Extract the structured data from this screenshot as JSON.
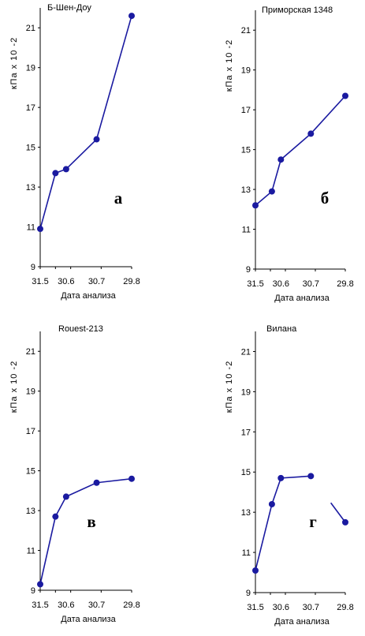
{
  "chart_data": [
    {
      "type": "line",
      "title": "Б-Шен-Доу",
      "panel_label": "а",
      "xlabel": "Дата анализа",
      "ylabel": "кПа х 10 -2",
      "categories": [
        "31.5",
        "",
        "30.6",
        "30.7",
        "29.8"
      ],
      "x": [
        0,
        0.5,
        0.85,
        1.85,
        3
      ],
      "values": [
        10.9,
        13.7,
        13.9,
        15.4,
        21.6
      ],
      "ylim": [
        9,
        22
      ],
      "yticks": [
        9,
        11,
        13,
        15,
        17,
        19,
        21
      ],
      "line_color": "#1a1aa0"
    },
    {
      "type": "line",
      "title": "Приморская 1348",
      "panel_label": "б",
      "xlabel": "Дата анализа",
      "ylabel": "кПа х 10 -2",
      "categories": [
        "31.5",
        "",
        "30.6",
        "30.7",
        "29.8"
      ],
      "x": [
        0,
        0.55,
        0.85,
        1.85,
        3
      ],
      "values": [
        12.2,
        12.9,
        14.5,
        15.8,
        17.7
      ],
      "ylim": [
        9,
        22
      ],
      "yticks": [
        9,
        11,
        13,
        15,
        17,
        19,
        21
      ],
      "line_color": "#1a1aa0"
    },
    {
      "type": "line",
      "title": "Rouest-213",
      "panel_label": "в",
      "xlabel": "Дата анализа",
      "ylabel": "кПа х 10 -2",
      "categories": [
        "31.5",
        "",
        "30.6",
        "30.7",
        "29.8"
      ],
      "x": [
        0,
        0.5,
        0.85,
        1.85,
        3
      ],
      "values": [
        9.3,
        12.7,
        13.7,
        14.4,
        14.6
      ],
      "ylim": [
        9,
        22
      ],
      "yticks": [
        9,
        11,
        13,
        15,
        17,
        19,
        21
      ],
      "line_color": "#1a1aa0"
    },
    {
      "type": "line",
      "title": "Вилана",
      "panel_label": "г",
      "xlabel": "Дата анализа",
      "ylabel": "кПа х 10 -2",
      "categories": [
        "31.5",
        "",
        "30.6",
        "30.7",
        "29.8"
      ],
      "x": [
        0,
        0.55,
        0.85,
        1.85,
        3
      ],
      "values": [
        10.1,
        13.4,
        14.7,
        14.8,
        12.5
      ],
      "ylim": [
        9,
        22
      ],
      "yticks": [
        9,
        11,
        13,
        15,
        17,
        19,
        21
      ],
      "line_color": "#1a1aa0"
    }
  ]
}
